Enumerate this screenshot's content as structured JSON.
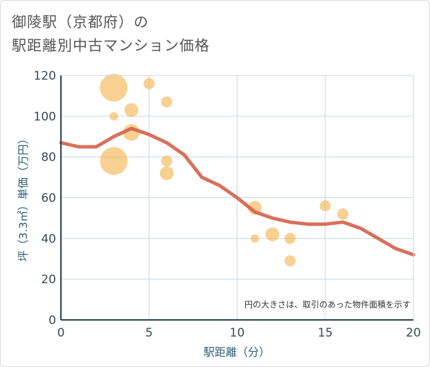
{
  "title_line1": "御陵駅（京都府）の",
  "title_line2": "駅距離別中古マンション価格",
  "chart_data": {
    "type": "scatter",
    "xlabel": "駅距離（分）",
    "ylabel": "坪（3.3㎡）単価（万円）",
    "xlim": [
      0,
      20
    ],
    "ylim": [
      0,
      120
    ],
    "xticks": [
      0,
      5,
      10,
      15,
      20
    ],
    "yticks": [
      0,
      20,
      40,
      60,
      80,
      100,
      120
    ],
    "grid": true,
    "note": "円の大きさは、取引のあった物件面積を示す",
    "bubble_color": "#f4b04a",
    "line_color": "#d4614a",
    "bubbles": [
      {
        "x": 3,
        "y": 114,
        "size": 20
      },
      {
        "x": 3,
        "y": 78,
        "size": 20
      },
      {
        "x": 3,
        "y": 100,
        "size": 6
      },
      {
        "x": 4,
        "y": 103,
        "size": 10
      },
      {
        "x": 4,
        "y": 92,
        "size": 12
      },
      {
        "x": 5,
        "y": 116,
        "size": 8
      },
      {
        "x": 6,
        "y": 107,
        "size": 8
      },
      {
        "x": 6,
        "y": 78,
        "size": 8
      },
      {
        "x": 6,
        "y": 72,
        "size": 10
      },
      {
        "x": 11,
        "y": 55,
        "size": 10
      },
      {
        "x": 11,
        "y": 40,
        "size": 6
      },
      {
        "x": 12,
        "y": 42,
        "size": 10
      },
      {
        "x": 13,
        "y": 40,
        "size": 8
      },
      {
        "x": 13,
        "y": 29,
        "size": 8
      },
      {
        "x": 15,
        "y": 56,
        "size": 8
      },
      {
        "x": 16,
        "y": 52,
        "size": 8
      }
    ],
    "trend": {
      "x": [
        0,
        1,
        2,
        3,
        4,
        5,
        6,
        7,
        8,
        9,
        10,
        11,
        12,
        13,
        14,
        15,
        16,
        17,
        18,
        19,
        20
      ],
      "y": [
        87,
        85,
        85,
        90,
        94,
        91,
        87,
        81,
        70,
        66,
        60,
        53,
        50,
        48,
        47,
        47,
        48,
        45,
        40,
        35,
        32
      ]
    }
  }
}
